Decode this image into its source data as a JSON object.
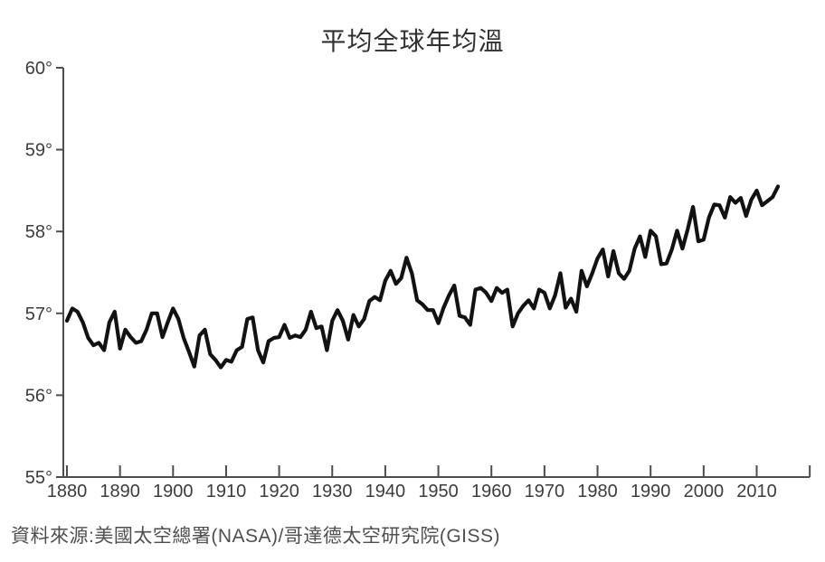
{
  "page": {
    "background": "#ffffff"
  },
  "chart_data": {
    "type": "line",
    "title": "平均全球年均溫",
    "source_note": "資料來源:美國太空總署(NASA)/哥達德太空研究院(GISS)",
    "x_start": 1880,
    "x_end": 2014,
    "xtick_years": [
      1880,
      1890,
      1900,
      1910,
      1920,
      1930,
      1940,
      1950,
      1960,
      1970,
      1980,
      1990,
      2000,
      2010
    ],
    "axis_end_year": 2020,
    "ylim": [
      55,
      60
    ],
    "ytick_labels": [
      "55°",
      "56°",
      "57°",
      "58°",
      "59°",
      "60°"
    ],
    "grid": false,
    "legend": false,
    "line_color": "#121212",
    "axis_color": "#4d4d4d",
    "label_color": "#3c3c3c",
    "title_color": "#303030",
    "source_color": "#4f4f4f",
    "values_f": [
      56.91,
      57.06,
      57.02,
      56.89,
      56.7,
      56.61,
      56.64,
      56.55,
      56.89,
      57.02,
      56.57,
      56.8,
      56.71,
      56.64,
      56.66,
      56.8,
      57.0,
      57.0,
      56.71,
      56.89,
      57.06,
      56.93,
      56.7,
      56.53,
      56.35,
      56.73,
      56.8,
      56.5,
      56.43,
      56.34,
      56.43,
      56.41,
      56.55,
      56.59,
      56.93,
      56.95,
      56.55,
      56.4,
      56.66,
      56.7,
      56.71,
      56.86,
      56.7,
      56.73,
      56.71,
      56.8,
      57.02,
      56.82,
      56.84,
      56.55,
      56.91,
      57.04,
      56.91,
      56.68,
      56.98,
      56.84,
      56.93,
      57.15,
      57.2,
      57.16,
      57.4,
      57.52,
      57.36,
      57.43,
      57.68,
      57.49,
      57.16,
      57.11,
      57.04,
      57.04,
      56.88,
      57.07,
      57.22,
      57.34,
      56.97,
      56.95,
      56.86,
      57.29,
      57.31,
      57.25,
      57.15,
      57.31,
      57.25,
      57.29,
      56.84,
      57.0,
      57.09,
      57.16,
      57.06,
      57.29,
      57.25,
      57.06,
      57.22,
      57.49,
      57.07,
      57.18,
      57.02,
      57.52,
      57.33,
      57.49,
      57.67,
      57.78,
      57.45,
      57.76,
      57.49,
      57.42,
      57.52,
      57.79,
      57.94,
      57.69,
      58.01,
      57.94,
      57.6,
      57.61,
      57.78,
      58.01,
      57.79,
      58.03,
      58.3,
      57.88,
      57.9,
      58.17,
      58.33,
      58.32,
      58.17,
      58.42,
      58.35,
      58.41,
      58.19,
      58.39,
      58.5,
      58.32,
      58.37,
      58.42,
      58.55
    ]
  }
}
